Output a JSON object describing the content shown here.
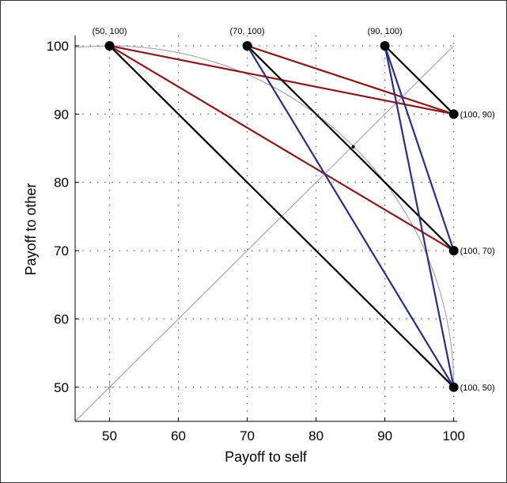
{
  "chart_data": {
    "type": "scatter",
    "xlabel": "Payoff to self",
    "ylabel": "Payoff to other",
    "xlim": [
      45,
      100.5
    ],
    "ylim": [
      45,
      101.5
    ],
    "xticks": [
      50,
      60,
      70,
      80,
      90,
      100
    ],
    "yticks": [
      50,
      60,
      70,
      80,
      90,
      100
    ],
    "grid": true,
    "colors": {
      "red": "#8b1a1a",
      "blue": "#2a2f86",
      "black": "#000000",
      "ref": "#999999",
      "grid": "#555555"
    },
    "points": [
      {
        "x": 50,
        "y": 100,
        "label": "(50, 100)"
      },
      {
        "x": 70,
        "y": 100,
        "label": "(70, 100)"
      },
      {
        "x": 90,
        "y": 100,
        "label": "(90, 100)"
      },
      {
        "x": 100,
        "y": 90,
        "label": "(100, 90)"
      },
      {
        "x": 100,
        "y": 70,
        "label": "(100, 70)"
      },
      {
        "x": 100,
        "y": 50,
        "label": "(100, 50)"
      }
    ],
    "segments": [
      {
        "from": [
          50,
          100
        ],
        "to": [
          100,
          90
        ],
        "color": "red"
      },
      {
        "from": [
          50,
          100
        ],
        "to": [
          100,
          70
        ],
        "color": "red"
      },
      {
        "from": [
          70,
          100
        ],
        "to": [
          100,
          90
        ],
        "color": "red"
      },
      {
        "from": [
          50,
          100
        ],
        "to": [
          100,
          50
        ],
        "color": "black"
      },
      {
        "from": [
          70,
          100
        ],
        "to": [
          100,
          70
        ],
        "color": "black"
      },
      {
        "from": [
          90,
          100
        ],
        "to": [
          100,
          90
        ],
        "color": "black"
      },
      {
        "from": [
          70,
          100
        ],
        "to": [
          100,
          50
        ],
        "color": "blue"
      },
      {
        "from": [
          90,
          100
        ],
        "to": [
          100,
          70
        ],
        "color": "blue"
      },
      {
        "from": [
          90,
          100
        ],
        "to": [
          100,
          50
        ],
        "color": "blue"
      }
    ],
    "reference": {
      "diagonal": {
        "from": [
          45,
          45
        ],
        "to": [
          100,
          100
        ]
      },
      "arc": {
        "center": [
          50,
          50
        ],
        "radius": 50
      },
      "marker": {
        "x": 85.4,
        "y": 85.2
      }
    }
  }
}
